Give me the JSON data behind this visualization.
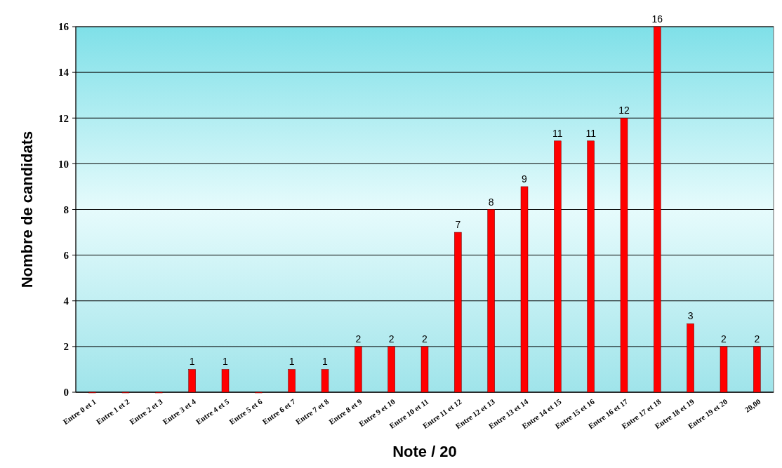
{
  "chart_data": {
    "type": "bar",
    "xlabel": "Note / 20",
    "ylabel": "Nombre de candidats",
    "categories": [
      "Entre 0 et 1",
      "Entre 1 et 2",
      "Entre 2 et 3",
      "Entre 3 et 4",
      "Entre 4 et 5",
      "Entre 5 et 6",
      "Entre 6 et 7",
      "Entre 7 et 8",
      "Entre 8 et 9",
      "Entre 9 et 10",
      "Entre 10 et 11",
      "Entre 11 et 12",
      "Entre 12 et 13",
      "Entre 13 et 14",
      "Entre 14 et 15",
      "Entre 15 et 16",
      "Entre 16 et 17",
      "Entre 17 et 18",
      "Entre 18 et 19",
      "Entre 19 et 20",
      "20,00"
    ],
    "values": [
      0,
      0,
      0,
      1,
      1,
      0,
      1,
      1,
      2,
      2,
      2,
      7,
      8,
      9,
      11,
      11,
      12,
      16,
      3,
      2,
      2
    ],
    "value_labels": [
      null,
      null,
      null,
      "1",
      "1",
      null,
      "1",
      "1",
      "2",
      "2",
      "2",
      "7",
      "8",
      "9",
      "11",
      "11",
      "12",
      "16",
      "3",
      "2",
      "2"
    ],
    "color": "#ff0000",
    "ylim": [
      0,
      16
    ],
    "yticks": [
      0,
      2,
      4,
      6,
      8,
      10,
      12,
      14,
      16
    ],
    "grid": "y"
  }
}
